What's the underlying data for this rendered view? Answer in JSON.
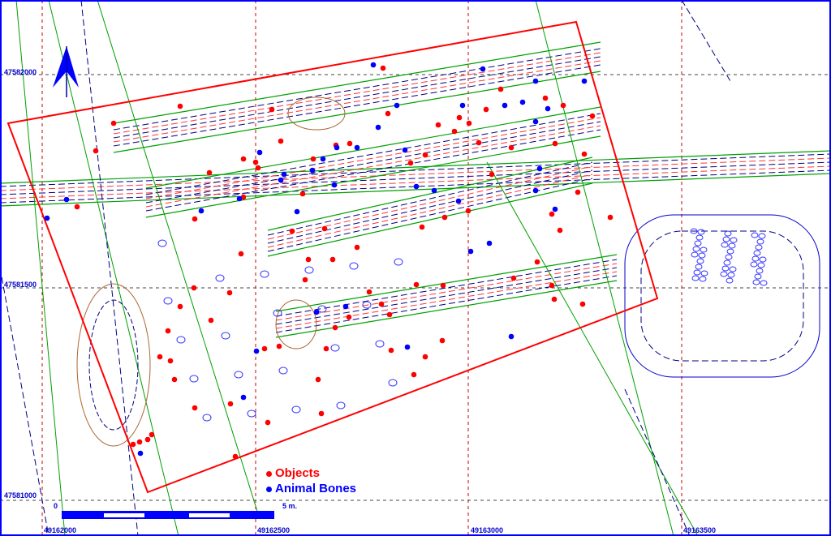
{
  "grid": {
    "easting_labels": [
      "49162000",
      "49162500",
      "49163000",
      "49163500"
    ],
    "northing_labels": [
      "47582000",
      "47581500",
      "47581000"
    ]
  },
  "legend": {
    "items": [
      {
        "label": "Objects",
        "color": "#ff0000"
      },
      {
        "label": "Animal Bones",
        "color": "#0000ff"
      }
    ]
  },
  "scale_bar": {
    "start_label": "0",
    "end_label": "5 m."
  },
  "north_arrow": {
    "icon": "north-arrow-icon"
  },
  "colors": {
    "grid": "#cc0000",
    "boundary": "#ff0000",
    "trench_outline": "#00aa00",
    "contour_blue": "#000080",
    "contour_red": "#ff3333",
    "frame": "#0000ff"
  }
}
